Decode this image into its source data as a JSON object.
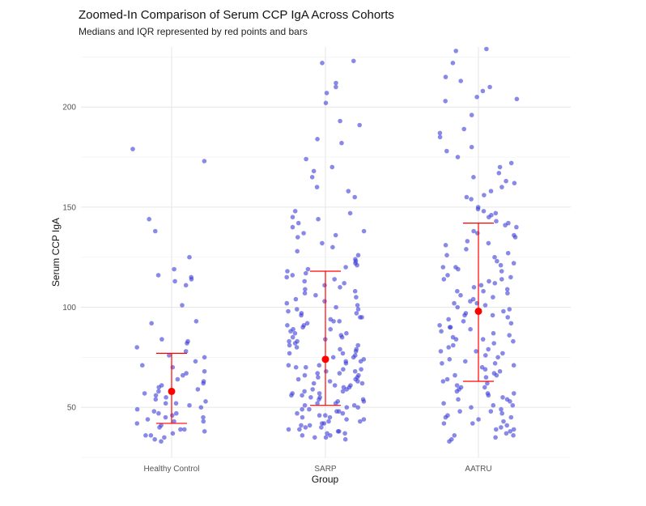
{
  "chart_data": {
    "type": "scatter",
    "title": "Zoomed-In Comparison of Serum CCP IgA Across Cohorts",
    "subtitle": "Medians and IQR represented by red points and bars",
    "xlabel": "Group",
    "ylabel": "Serum CCP IgA",
    "categories": [
      "Healthy Control",
      "SARP",
      "AATRU"
    ],
    "ylim": [
      25,
      230
    ],
    "yticks": [
      50,
      100,
      150,
      200
    ],
    "grid": true,
    "colors": {
      "points": "#3b3bd9",
      "summary": "#ff0000"
    },
    "summary": [
      {
        "group": "Healthy Control",
        "median": 58,
        "q1": 42,
        "q3": 77
      },
      {
        "group": "SARP",
        "median": 74,
        "q1": 51,
        "q3": 118
      },
      {
        "group": "AATRU",
        "median": 98,
        "q1": 63,
        "q3": 142
      }
    ],
    "points": [
      {
        "group": "Healthy Control",
        "values": [
          179,
          173,
          138,
          144,
          125,
          119,
          116,
          115,
          114,
          113,
          111,
          101,
          93,
          92,
          84,
          83,
          82,
          80,
          78,
          76,
          75,
          73,
          71,
          70,
          68,
          67,
          66,
          64,
          63,
          62,
          61,
          60,
          59,
          58,
          57,
          56,
          55,
          54,
          53,
          52,
          51,
          50,
          49,
          48,
          47,
          46,
          45,
          44,
          43,
          42,
          41,
          40,
          39,
          38,
          37,
          36,
          35,
          34,
          33,
          52,
          47,
          43,
          39,
          36,
          45
        ]
      },
      {
        "group": "SARP",
        "values": [
          222,
          223,
          212,
          210,
          207,
          202,
          193,
          191,
          184,
          182,
          174,
          170,
          168,
          165,
          160,
          158,
          155,
          148,
          147,
          145,
          144,
          142,
          140,
          138,
          137,
          136,
          135,
          132,
          130,
          128,
          126,
          124,
          123,
          122,
          121,
          120,
          119,
          118,
          117,
          116,
          115,
          114,
          113,
          112,
          111,
          110,
          109,
          108,
          107,
          106,
          105,
          104,
          103,
          102,
          101,
          100,
          99,
          98,
          97,
          96,
          95,
          94,
          93,
          92,
          91,
          90,
          89,
          88,
          87,
          86,
          85,
          84,
          83,
          82,
          81,
          80,
          79,
          78,
          77,
          76,
          75,
          74,
          73,
          72,
          71,
          70,
          69,
          68,
          67,
          66,
          65,
          64,
          63,
          62,
          61,
          60,
          59,
          58,
          57,
          56,
          55,
          54,
          53,
          52,
          51,
          50,
          49,
          48,
          47,
          46,
          45,
          44,
          43,
          42,
          41,
          40,
          39,
          38,
          37,
          36,
          35,
          34,
          35,
          37,
          39,
          41,
          43,
          45,
          47,
          49,
          51,
          53,
          55,
          57,
          59,
          61,
          63,
          65,
          67,
          69,
          71,
          73,
          75,
          77,
          79,
          81,
          83,
          85,
          87,
          89,
          91,
          93,
          95,
          97,
          99,
          36,
          38,
          40,
          42,
          44,
          46,
          48,
          50,
          52,
          54,
          56,
          58,
          60,
          62,
          64,
          66,
          68,
          70
        ]
      },
      {
        "group": "AATRU",
        "values": [
          228,
          229,
          222,
          215,
          213,
          210,
          208,
          205,
          204,
          203,
          196,
          189,
          187,
          185,
          180,
          178,
          175,
          172,
          170,
          167,
          165,
          163,
          162,
          160,
          158,
          156,
          155,
          154,
          150,
          149,
          148,
          147,
          146,
          145,
          143,
          142,
          141,
          140,
          138,
          137,
          136,
          135,
          133,
          131,
          129,
          127,
          125,
          123,
          122,
          121,
          120,
          119,
          118,
          116,
          115,
          114,
          113,
          112,
          111,
          110,
          109,
          108,
          107,
          106,
          105,
          104,
          103,
          102,
          101,
          100,
          99,
          98,
          97,
          96,
          95,
          94,
          93,
          92,
          91,
          90,
          89,
          88,
          87,
          86,
          85,
          84,
          83,
          82,
          81,
          80,
          79,
          78,
          77,
          76,
          75,
          74,
          73,
          72,
          71,
          70,
          69,
          68,
          67,
          66,
          65,
          64,
          63,
          62,
          61,
          60,
          59,
          58,
          57,
          56,
          55,
          54,
          53,
          52,
          51,
          50,
          49,
          48,
          47,
          46,
          45,
          44,
          43,
          42,
          41,
          40,
          39,
          38,
          37,
          36,
          35,
          34,
          33,
          36,
          39,
          42,
          45,
          48,
          51,
          54,
          57,
          60,
          66,
          72,
          78,
          84,
          90,
          96,
          102,
          108,
          114,
          120,
          126,
          132
        ]
      }
    ]
  }
}
